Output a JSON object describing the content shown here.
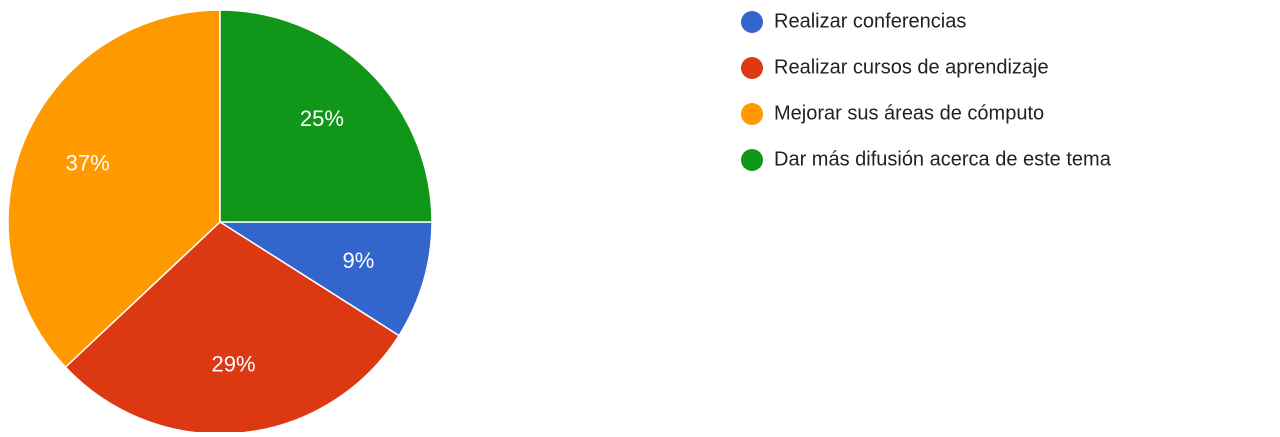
{
  "chart_data": {
    "type": "pie",
    "categories": [
      "Realizar conferencias",
      "Realizar cursos de aprendizaje",
      "Mejorar sus áreas de cómputo",
      "Dar más difusión acerca de este tema"
    ],
    "values": [
      9,
      29,
      37,
      25
    ],
    "value_labels": [
      "9%",
      "29%",
      "37%",
      "25%"
    ],
    "colors": [
      "#3366cc",
      "#dc3912",
      "#ff9900",
      "#109618"
    ]
  }
}
